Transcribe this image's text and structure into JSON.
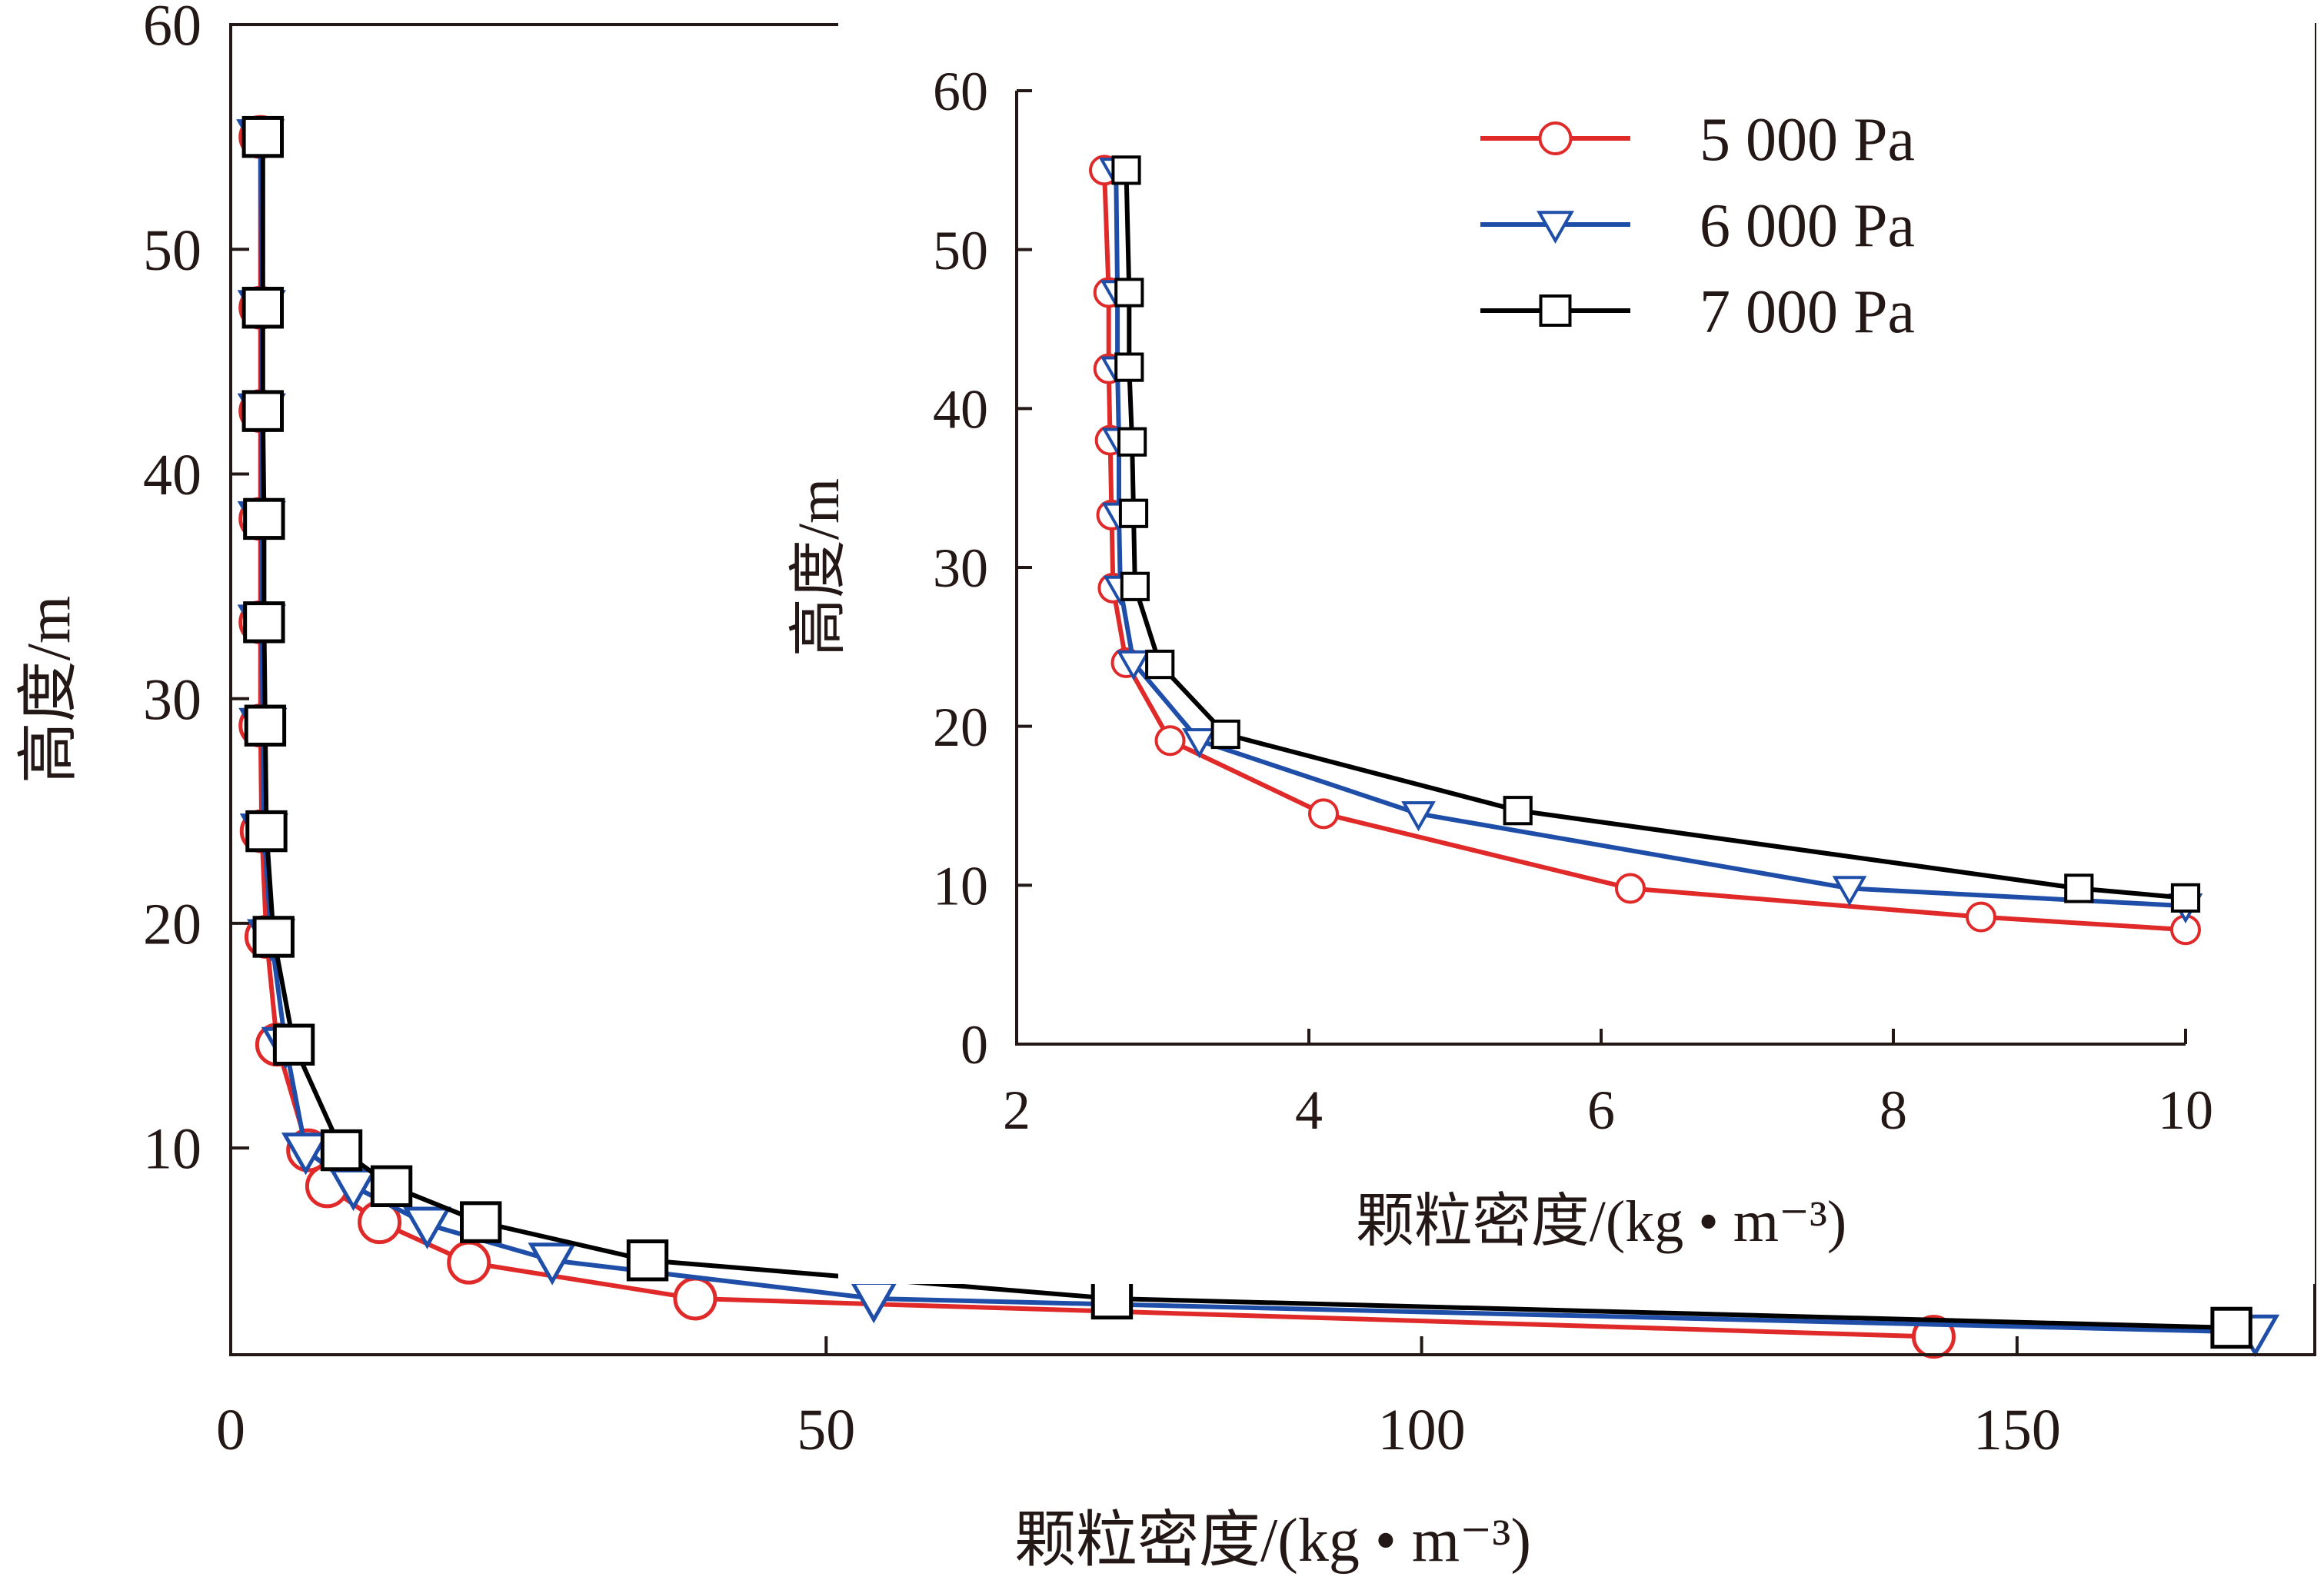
{
  "colors": {
    "axis": "#231815",
    "background": "#ffffff"
  },
  "chart_data": [
    {
      "id": "main",
      "type": "line",
      "xlabel": "颗粒密度/(kg • m⁻³)",
      "ylabel": "高度/m",
      "xlim": [
        0,
        175
      ],
      "ylim": [
        0.8,
        60
      ],
      "xticks": [
        0,
        50,
        100,
        150
      ],
      "yticks": [
        10,
        20,
        30,
        40,
        50,
        60
      ],
      "grid": false,
      "series": [
        {
          "name": "5 000 Pa",
          "color": "#e02a2a",
          "marker": "circle",
          "points": [
            [
              2.5,
              55
            ],
            [
              2.5,
              47.4
            ],
            [
              2.5,
              42.8
            ],
            [
              2.5,
              38
            ],
            [
              2.5,
              33.4
            ],
            [
              2.5,
              28.8
            ],
            [
              2.6,
              24.1
            ],
            [
              3.0,
              19.4
            ],
            [
              3.9,
              14.6
            ],
            [
              6.5,
              9.9
            ],
            [
              8.1,
              8.3
            ],
            [
              12.5,
              6.7
            ],
            [
              20,
              4.9
            ],
            [
              39,
              3.3
            ],
            [
              143,
              1.6
            ]
          ]
        },
        {
          "name": "6 000 Pa",
          "color": "#1f4ea8",
          "marker": "triangle-down",
          "points": [
            [
              2.5,
              55
            ],
            [
              2.6,
              47.4
            ],
            [
              2.6,
              42.8
            ],
            [
              2.6,
              38
            ],
            [
              2.6,
              33.4
            ],
            [
              2.7,
              28.8
            ],
            [
              2.8,
              24.1
            ],
            [
              3.4,
              19.4
            ],
            [
              4.6,
              14.6
            ],
            [
              6.3,
              9.9
            ],
            [
              10.3,
              8.3
            ],
            [
              16.5,
              6.6
            ],
            [
              27,
              5.0
            ],
            [
              54,
              3.3
            ],
            [
              170,
              1.8
            ]
          ]
        },
        {
          "name": "7 000 Pa",
          "color": "#000000",
          "marker": "square",
          "points": [
            [
              2.7,
              55
            ],
            [
              2.7,
              47.4
            ],
            [
              2.7,
              42.8
            ],
            [
              2.8,
              38
            ],
            [
              2.8,
              33.4
            ],
            [
              2.9,
              28.8
            ],
            [
              3.0,
              24.1
            ],
            [
              3.6,
              19.4
            ],
            [
              5.3,
              14.6
            ],
            [
              9.3,
              9.9
            ],
            [
              13.5,
              8.3
            ],
            [
              21,
              6.7
            ],
            [
              35,
              5.0
            ],
            [
              74,
              3.3
            ],
            [
              168,
              2.0
            ]
          ]
        }
      ]
    },
    {
      "id": "inset",
      "type": "line",
      "xlabel": "颗粒密度/(kg • m⁻³)",
      "ylabel": "高度/m",
      "xlim": [
        2,
        10
      ],
      "ylim": [
        0,
        60
      ],
      "xticks": [
        2,
        4,
        6,
        8,
        10
      ],
      "yticks": [
        0,
        10,
        20,
        30,
        40,
        50,
        60
      ],
      "grid": false,
      "legend": {
        "position": "top-right",
        "entries": [
          {
            "label": "5 000 Pa",
            "color": "#e02a2a",
            "marker": "circle"
          },
          {
            "label": "6 000 Pa",
            "color": "#1f4ea8",
            "marker": "triangle-down"
          },
          {
            "label": "7 000 Pa",
            "color": "#000000",
            "marker": "square"
          }
        ]
      },
      "series": [
        {
          "name": "5 000 Pa",
          "color": "#e02a2a",
          "marker": "circle",
          "points": [
            [
              2.6,
              55
            ],
            [
              2.63,
              47.3
            ],
            [
              2.63,
              42.5
            ],
            [
              2.64,
              38
            ],
            [
              2.65,
              33.3
            ],
            [
              2.66,
              28.7
            ],
            [
              2.75,
              24
            ],
            [
              3.05,
              19.1
            ],
            [
              4.1,
              14.5
            ],
            [
              6.2,
              9.8
            ],
            [
              8.6,
              8
            ],
            [
              10,
              7.2
            ]
          ]
        },
        {
          "name": "6 000 Pa",
          "color": "#1f4ea8",
          "marker": "triangle-down",
          "points": [
            [
              2.68,
              55
            ],
            [
              2.69,
              47.3
            ],
            [
              2.69,
              42.5
            ],
            [
              2.7,
              38
            ],
            [
              2.7,
              33.3
            ],
            [
              2.71,
              28.7
            ],
            [
              2.8,
              24
            ],
            [
              3.25,
              19.1
            ],
            [
              4.75,
              14.5
            ],
            [
              7.7,
              9.8
            ],
            [
              10,
              8.7
            ]
          ]
        },
        {
          "name": "7 000 Pa",
          "color": "#000000",
          "marker": "square",
          "points": [
            [
              2.75,
              55
            ],
            [
              2.77,
              47.3
            ],
            [
              2.77,
              42.6
            ],
            [
              2.79,
              37.9
            ],
            [
              2.8,
              33.4
            ],
            [
              2.81,
              28.8
            ],
            [
              2.98,
              23.9
            ],
            [
              3.43,
              19.5
            ],
            [
              5.43,
              14.7
            ],
            [
              9.27,
              9.8
            ],
            [
              10,
              9.2
            ]
          ]
        }
      ]
    }
  ]
}
